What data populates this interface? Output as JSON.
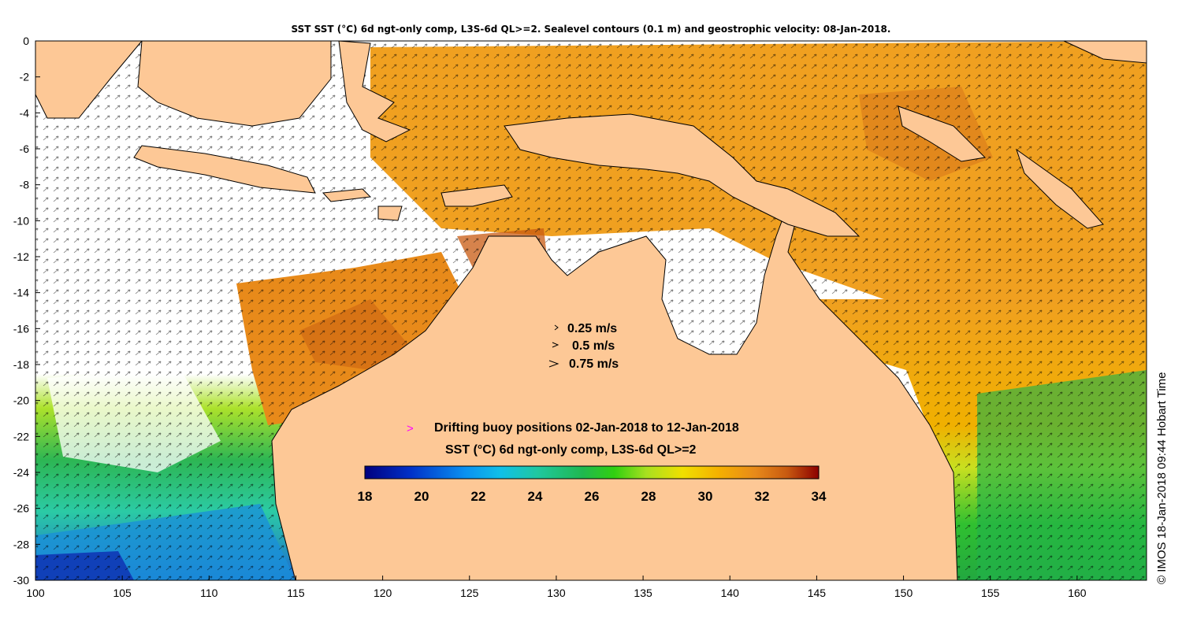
{
  "title": "SST SST (°C) 6d ngt-only comp, L3S-6d QL>=2. Sealevel contours (0.1 m) and geostrophic velocity: 08-Jan-2018.",
  "credit": "© IMOS 18-Jan-2018 09:44 Hobart Time",
  "axes": {
    "x_ticks": [
      100,
      105,
      110,
      115,
      120,
      125,
      130,
      135,
      140,
      145,
      150,
      155,
      160
    ],
    "y_ticks": [
      0,
      -2,
      -4,
      -6,
      -8,
      -10,
      -12,
      -14,
      -16,
      -18,
      -20,
      -22,
      -24,
      -26,
      -28,
      -30
    ],
    "lon_range": [
      100,
      164
    ],
    "lat_range": [
      -30,
      0
    ]
  },
  "velocity_legend": [
    {
      "label": "0.25 m/s",
      "speed": 0.25
    },
    {
      "label": "0.5 m/s",
      "speed": 0.5
    },
    {
      "label": "0.75 m/s",
      "speed": 0.75
    }
  ],
  "buoy_legend": {
    "symbol": ">",
    "label": "Drifting buoy positions 02-Jan-2018 to 12-Jan-2018",
    "color": "#ff00ff"
  },
  "colorbar": {
    "title": "SST (°C) 6d ngt-only comp, L3S-6d QL>=2",
    "ticks": [
      18,
      20,
      22,
      24,
      26,
      28,
      30,
      32,
      34
    ],
    "range": [
      18,
      34
    ]
  },
  "colors": {
    "land": "#fdc896",
    "no_data": "#ffffff",
    "warm": "#e88a1a",
    "hot": "#c85a10",
    "mid": "#9fd62a",
    "cool": "#22b24a",
    "cold": "#1ab0d8"
  }
}
